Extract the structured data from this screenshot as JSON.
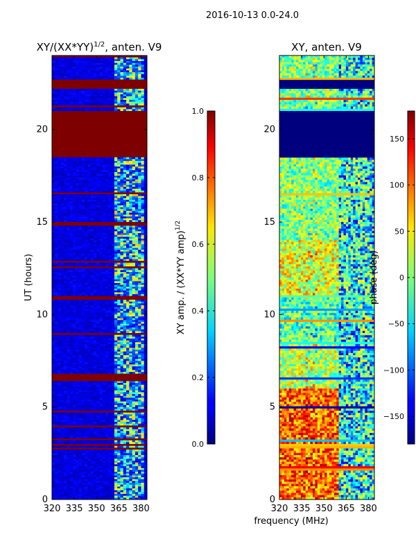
{
  "suptitle": "2016-10-13 0.0-24.0",
  "chart_data": [
    {
      "type": "heatmap",
      "title_main": "XY/(XX*YY)",
      "title_exp": "1/2",
      "title_suffix": ", anten. V9",
      "ylabel": "UT (hours)",
      "xlabel": "",
      "xlim": [
        320,
        384
      ],
      "ylim": [
        0,
        24
      ],
      "xticks": [
        "320",
        "335",
        "350",
        "365",
        "380"
      ],
      "xtick_values": [
        320,
        335,
        350,
        365,
        380
      ],
      "yticks": [
        "0",
        "5",
        "10",
        "15",
        "20"
      ],
      "ytick_values": [
        0,
        5,
        10,
        15,
        20
      ],
      "colorbar": {
        "label_main": "XY amp. / (XX*YY amp)",
        "label_exp": "1/2",
        "range": [
          0,
          1
        ],
        "ticks": [
          "0.0",
          "0.2",
          "0.4",
          "0.6",
          "0.8",
          "1.0"
        ],
        "tick_values": [
          0,
          0.2,
          0.4,
          0.6,
          0.8,
          1.0
        ]
      },
      "flagged_bands_hours": [
        [
          18.5,
          21.0
        ],
        [
          22.2,
          22.7
        ],
        [
          6.4,
          6.8
        ],
        [
          10.8,
          11.0
        ],
        [
          14.8,
          15.0
        ]
      ]
    },
    {
      "type": "heatmap",
      "title_main": "XY, anten. V9",
      "ylabel": "",
      "xlabel": "frequency (MHz)",
      "xlim": [
        320,
        384
      ],
      "ylim": [
        0,
        24
      ],
      "xticks": [
        "320",
        "335",
        "350",
        "365",
        "380"
      ],
      "xtick_values": [
        320,
        335,
        350,
        365,
        380
      ],
      "yticks": [
        "0",
        "5",
        "10",
        "15",
        "20"
      ],
      "ytick_values": [
        0,
        5,
        10,
        15,
        20
      ],
      "colorbar": {
        "label": "phase (deg)",
        "range": [
          -180,
          180
        ],
        "ticks": [
          "150",
          "100",
          "50",
          "0",
          "−50",
          "−100",
          "−150"
        ],
        "tick_values": [
          150,
          100,
          50,
          0,
          -50,
          -100,
          -150
        ]
      },
      "flagged_bands_hours": [
        [
          18.5,
          21.0
        ],
        [
          22.2,
          22.7
        ]
      ]
    }
  ]
}
